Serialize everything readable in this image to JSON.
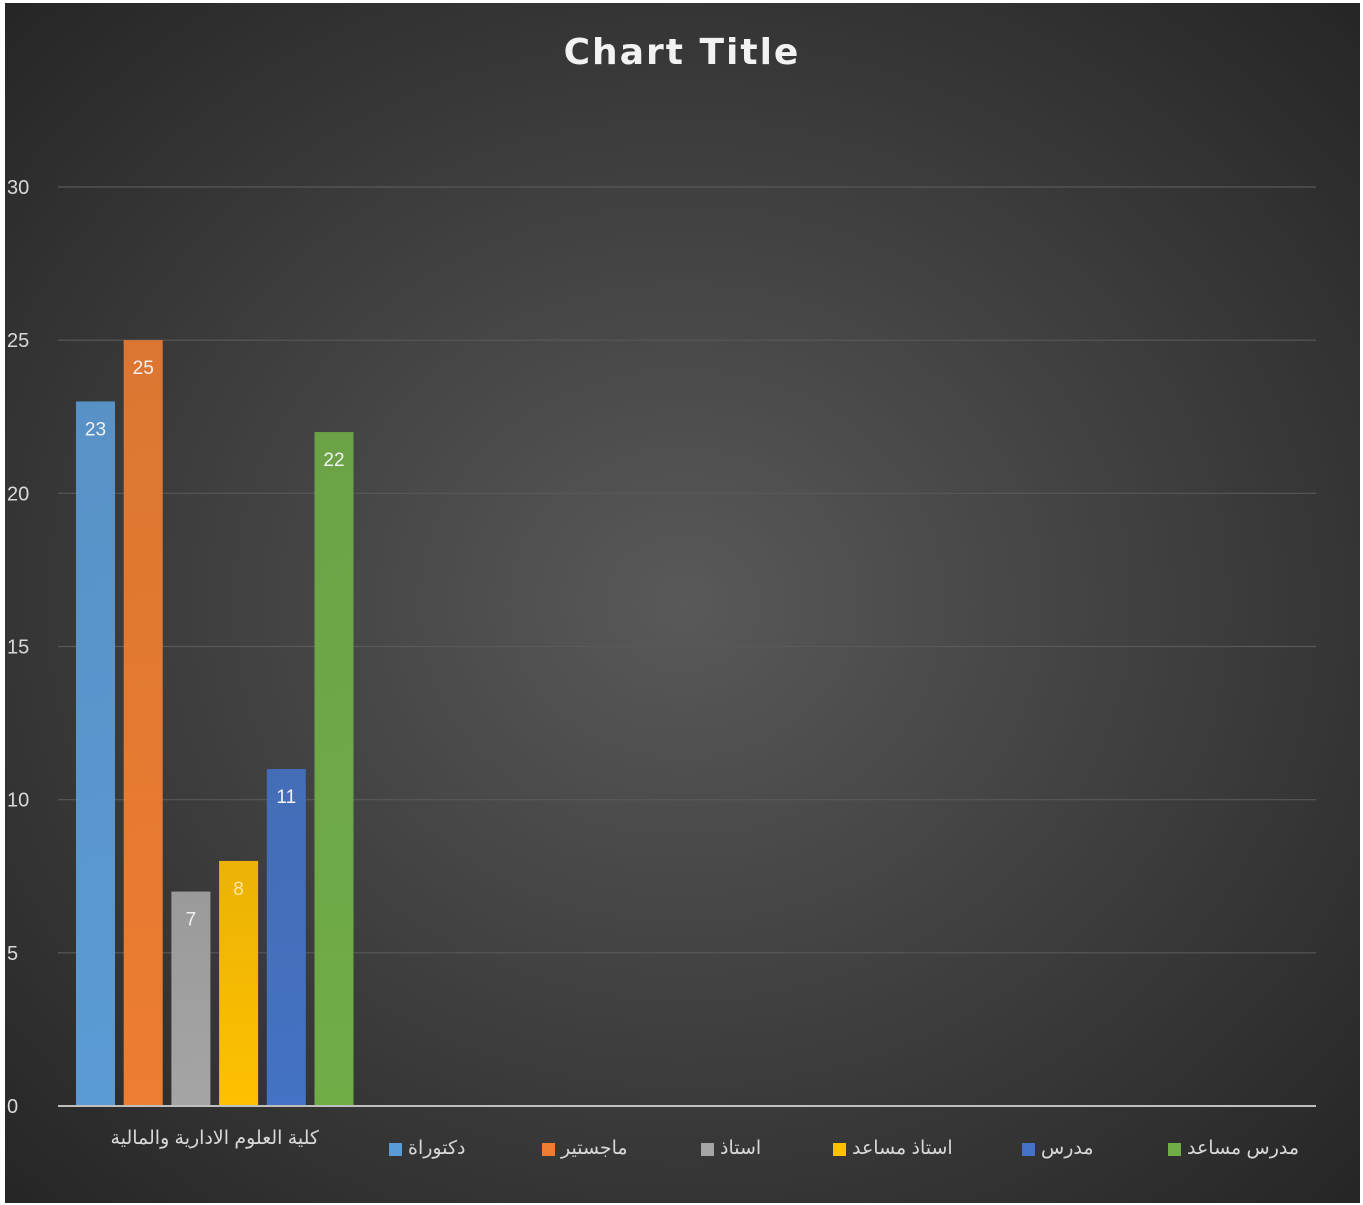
{
  "chart_data": {
    "type": "bar",
    "title": "Chart Title",
    "categories": [
      "كلية العلوم الادارية والمالية"
    ],
    "series": [
      {
        "name": "دكتوراة",
        "values": [
          23
        ],
        "color": "#5b9bd5"
      },
      {
        "name": "ماجستير",
        "values": [
          25
        ],
        "color": "#ed7d31"
      },
      {
        "name": "استاذ",
        "values": [
          7
        ],
        "color": "#a5a5a5"
      },
      {
        "name": "استاذ مساعد",
        "values": [
          8
        ],
        "color": "#ffc000"
      },
      {
        "name": "مدرس",
        "values": [
          11
        ],
        "color": "#4472c4"
      },
      {
        "name": "مدرس مساعد",
        "values": [
          22
        ],
        "color": "#70ad47"
      }
    ],
    "yticks": [
      0,
      5,
      10,
      15,
      20,
      25,
      30
    ],
    "ylim": [
      0,
      30
    ],
    "grid": true,
    "legend_position": "bottom",
    "background": "dark-radial"
  }
}
